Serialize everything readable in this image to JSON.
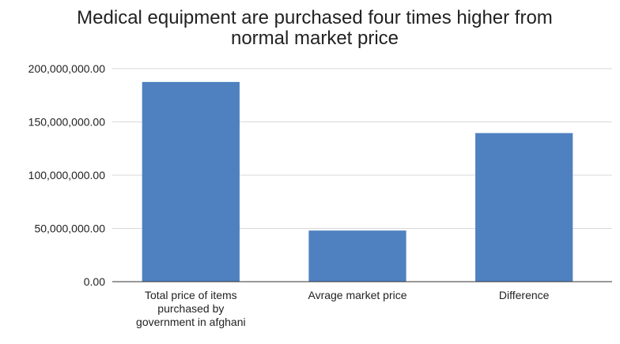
{
  "chart_data": {
    "type": "bar",
    "title_lines": [
      "Medical equipment are purchased four times higher from",
      "normal market price"
    ],
    "categories": [
      [
        "Total price of items",
        "purchased by",
        "government in afghani"
      ],
      [
        "Avrage market price"
      ],
      [
        "Difference"
      ]
    ],
    "values": [
      187500000,
      48000000,
      139500000
    ],
    "ylim": [
      0,
      200000000
    ],
    "yticks": [
      0,
      50000000,
      100000000,
      150000000,
      200000000
    ],
    "ytick_labels": [
      "0.00",
      "50,000,000.00",
      "100,000,000.00",
      "150,000,000.00",
      "200,000,000.00"
    ],
    "grid": true,
    "colors": {
      "bar": "#4f81c0",
      "grid": "#d9d9d9",
      "axis": "#333333"
    }
  }
}
